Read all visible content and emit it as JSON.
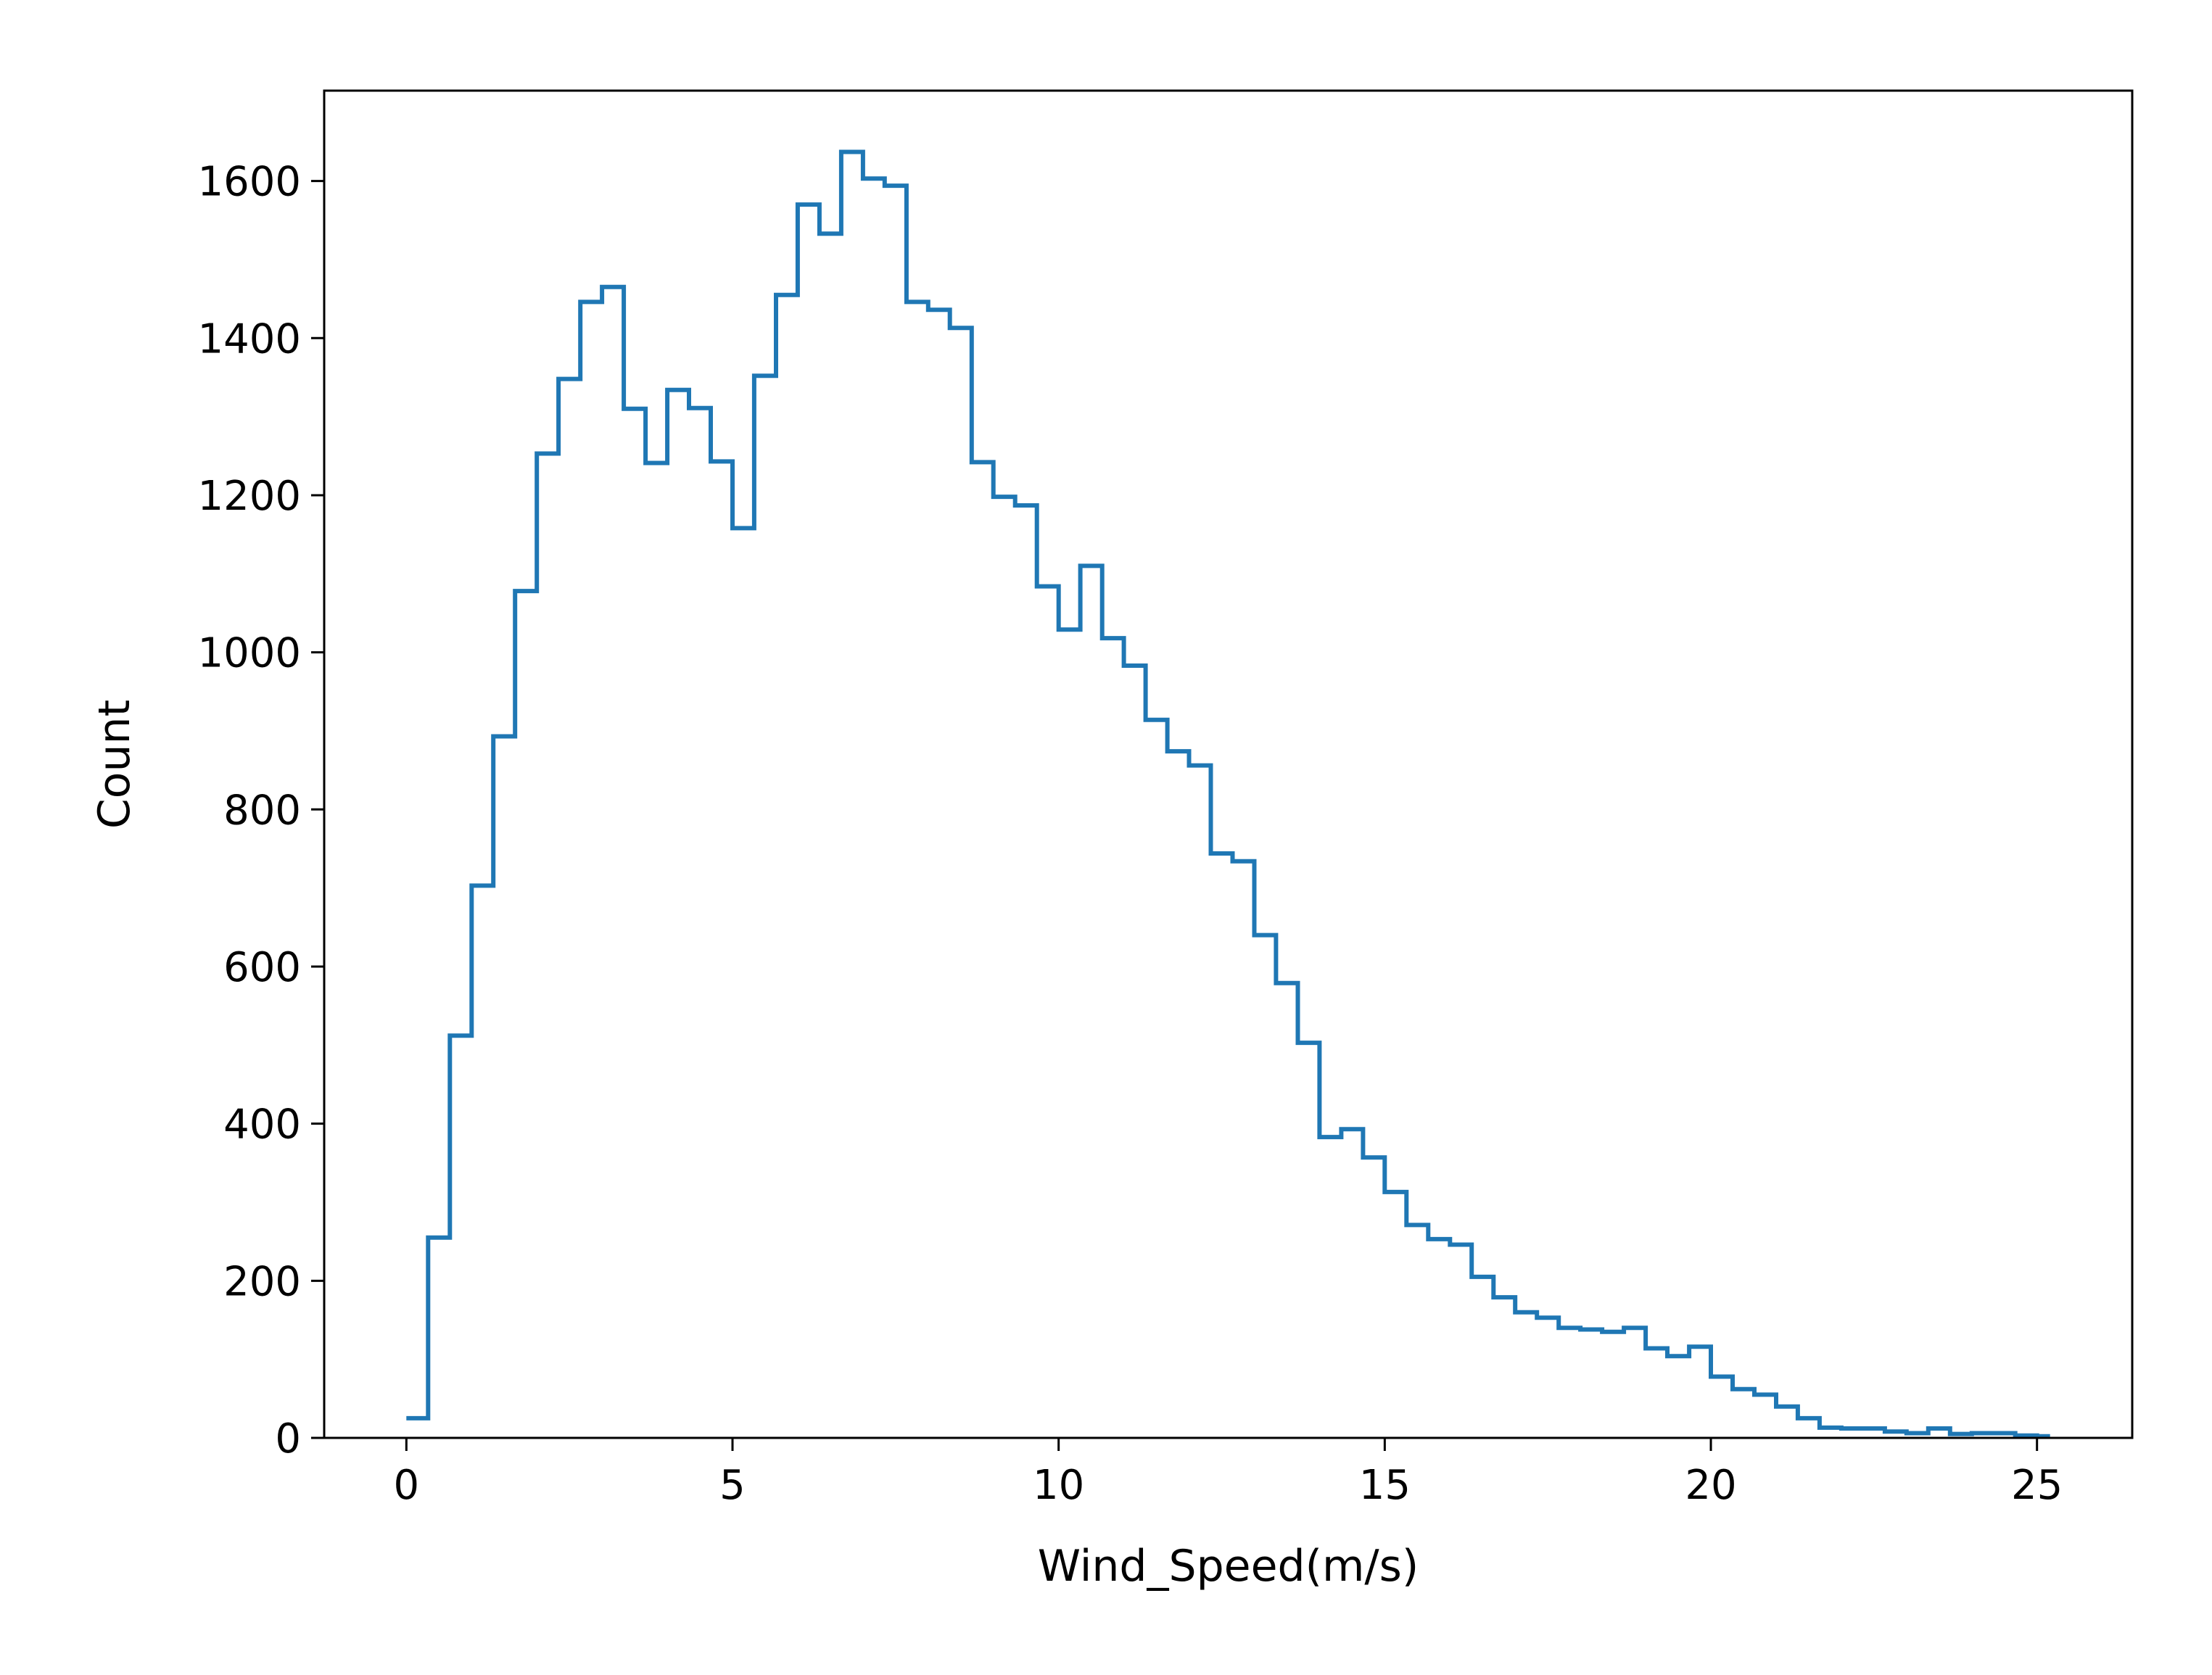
{
  "chart_data": {
    "type": "histogram",
    "title": "",
    "xlabel": "Wind_Speed(m/s)",
    "ylabel": "Count",
    "xlim": [
      -1.26,
      26.46
    ],
    "ylim": [
      0,
      1715
    ],
    "xticks": [
      0,
      5,
      10,
      15,
      20,
      25
    ],
    "yticks": [
      0,
      200,
      400,
      600,
      800,
      1000,
      1200,
      1400,
      1600
    ],
    "grid": false,
    "legend": "none",
    "color": "#1f77b4",
    "bin_edges": [
      0,
      0.333,
      0.667,
      1,
      1.333,
      1.667,
      2,
      2.333,
      2.667,
      3,
      3.333,
      3.667,
      4,
      4.333,
      4.667,
      5,
      5.333,
      5.667,
      6,
      6.333,
      6.667,
      7,
      7.333,
      7.667,
      8,
      8.333,
      8.667,
      9,
      9.333,
      9.667,
      10,
      10.333,
      10.667,
      11,
      11.333,
      11.667,
      12,
      12.333,
      12.667,
      13,
      13.333,
      13.667,
      14,
      14.333,
      14.667,
      15,
      15.333,
      15.667,
      16,
      16.333,
      16.667,
      17,
      17.333,
      17.667,
      18,
      18.333,
      18.667,
      19,
      19.333,
      19.667,
      20,
      20.333,
      20.667,
      21,
      21.333,
      21.667,
      22,
      22.333,
      22.667,
      23,
      23.333,
      23.667,
      24,
      24.333,
      24.667,
      25,
      25.2
    ],
    "counts": [
      25,
      255,
      512,
      703,
      893,
      1078,
      1253,
      1348,
      1446,
      1465,
      1310,
      1241,
      1334,
      1311,
      1243,
      1158,
      1352,
      1455,
      1570,
      1533,
      1637,
      1603,
      1594,
      1446,
      1436,
      1413,
      1242,
      1198,
      1187,
      1084,
      1029,
      1110,
      1018,
      983,
      914,
      874,
      856,
      744,
      734,
      640,
      579,
      503,
      383,
      393,
      357,
      313,
      271,
      253,
      246,
      205,
      179,
      160,
      153,
      140,
      138,
      135,
      140,
      114,
      104,
      116,
      78,
      62,
      55,
      40,
      25,
      13,
      12,
      12,
      8,
      6,
      12,
      5,
      6,
      6,
      3,
      2
    ]
  }
}
